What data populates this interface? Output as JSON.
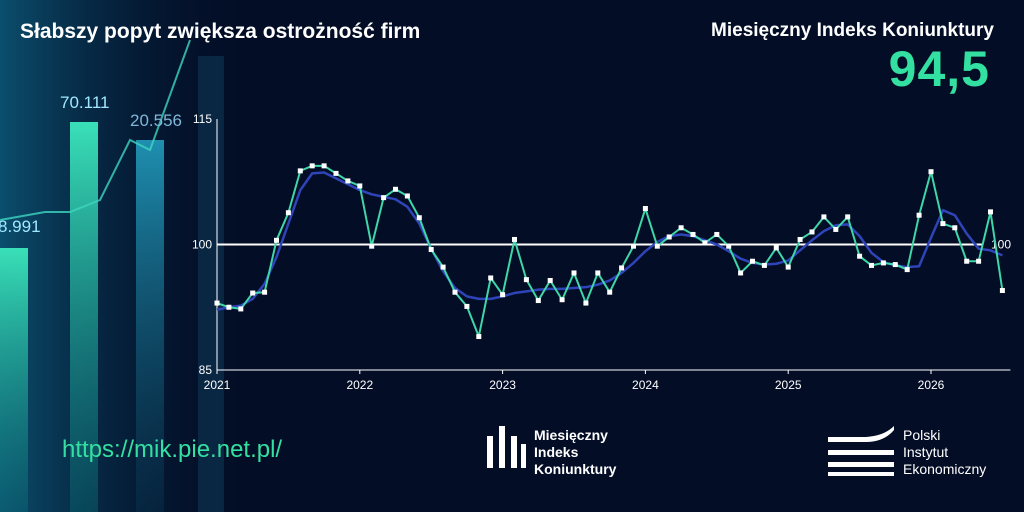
{
  "header": {
    "title": "Słabszy popyt zwiększa ostrożność firm",
    "index_label": "Miesięczny Indeks Koniunktury",
    "index_value": "94,5"
  },
  "background_numbers": [
    "8.991",
    "70.111",
    "20.556"
  ],
  "footer": {
    "url": "https://mik.pie.net.pl/",
    "mik_logo_lines": [
      "Miesięczny",
      "Indeks",
      "Koniunktury"
    ],
    "pie_logo_lines": [
      "Polski",
      "Instytut",
      "Ekonomiczny"
    ]
  },
  "colors": {
    "accent": "#34e0a1",
    "raw_line": "#3fd6a8",
    "smooth_line": "#2f44b8",
    "background": "#030d26"
  },
  "chart_data": {
    "type": "line",
    "ylim": [
      85,
      115
    ],
    "y_ticks": [
      "115",
      "100",
      "85"
    ],
    "x_ticks": [
      "2021",
      "2022",
      "2023",
      "2024",
      "2025",
      "2026"
    ],
    "reference_line": {
      "value": 100,
      "label": "100"
    },
    "x_start": "2021-01",
    "series": [
      {
        "style": "monthly",
        "values": [
          93.0,
          92.5,
          92.3,
          94.2,
          94.3,
          100.5,
          103.8,
          108.8,
          109.4,
          109.4,
          108.5,
          107.6,
          107.0,
          99.8,
          105.6,
          106.6,
          105.8,
          103.2,
          99.4,
          97.3,
          94.3,
          92.6,
          89.0,
          96.0,
          94.0,
          100.6,
          95.8,
          93.3,
          95.7,
          93.4,
          96.6,
          93.0,
          96.6,
          94.3,
          97.2,
          99.8,
          104.3,
          99.8,
          100.9,
          102.0,
          101.2,
          100.2,
          101.2,
          99.8,
          96.6,
          98.0,
          97.5,
          99.6,
          97.3,
          100.6,
          101.5,
          103.3,
          101.8,
          103.3,
          98.6,
          97.5,
          97.8,
          97.6,
          97.0,
          103.5,
          108.7,
          102.5,
          102.0,
          98.0,
          98.0,
          103.9,
          94.5
        ]
      },
      {
        "style": "smoothed",
        "values": [
          92.2,
          92.5,
          92.7,
          93.5,
          95.3,
          98.5,
          102.5,
          106.5,
          108.5,
          108.6,
          107.9,
          107.2,
          106.5,
          106.0,
          105.7,
          105.4,
          104.5,
          102.5,
          99.5,
          96.8,
          94.8,
          93.8,
          93.5,
          93.5,
          93.8,
          94.2,
          94.4,
          94.6,
          94.7,
          94.7,
          94.8,
          94.9,
          95.2,
          95.7,
          96.6,
          97.8,
          99.2,
          100.3,
          101.0,
          101.2,
          101.0,
          100.5,
          100.0,
          99.2,
          98.3,
          97.8,
          97.6,
          97.7,
          98.1,
          99.3,
          100.5,
          101.6,
          102.3,
          102.4,
          101.0,
          99.0,
          97.9,
          97.5,
          97.3,
          97.4,
          100.8,
          104.1,
          103.5,
          101.3,
          99.5,
          99.3,
          98.7
        ]
      }
    ]
  }
}
